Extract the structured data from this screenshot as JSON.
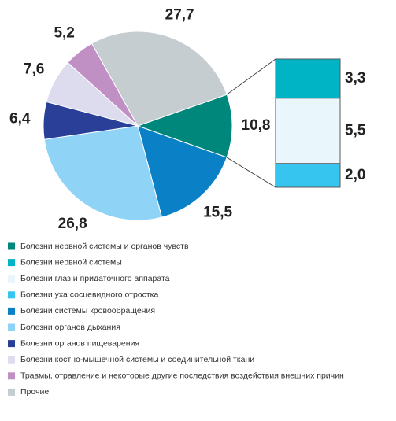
{
  "chart_data": {
    "type": "pie",
    "categories": [
      "Болезни нервной системы и органов чувств",
      "Болезни системы кровообращения",
      "Болезни органов дыхания",
      "Болезни органов пищеварения",
      "Болезни костно-мышечной системы и соединительной ткани",
      "Травмы, отравление и некоторые другие последствия воздействия внешних причин",
      "Прочие"
    ],
    "values": [
      10.8,
      15.5,
      26.8,
      6.4,
      7.6,
      5.2,
      27.7
    ],
    "value_labels": [
      "10,8",
      "15,5",
      "26,8",
      "6,4",
      "7,6",
      "5,2",
      "27,7"
    ],
    "colors": [
      "#00877b",
      "#0a80c6",
      "#8fd4f6",
      "#2a3f98",
      "#dcdcee",
      "#c08fc4",
      "#c6cdd0"
    ],
    "breakdown": {
      "categories": [
        "Болезни нервной системы",
        "Болезни глаз и придаточного аппарата",
        "Болезни уха сосцевидного отростка"
      ],
      "values": [
        3.3,
        5.5,
        2.0
      ],
      "value_labels": [
        "3,3",
        "5,5",
        "2,0"
      ],
      "colors": [
        "#00b4c6",
        "#e9f6fc",
        "#35c5ee"
      ]
    }
  }
}
